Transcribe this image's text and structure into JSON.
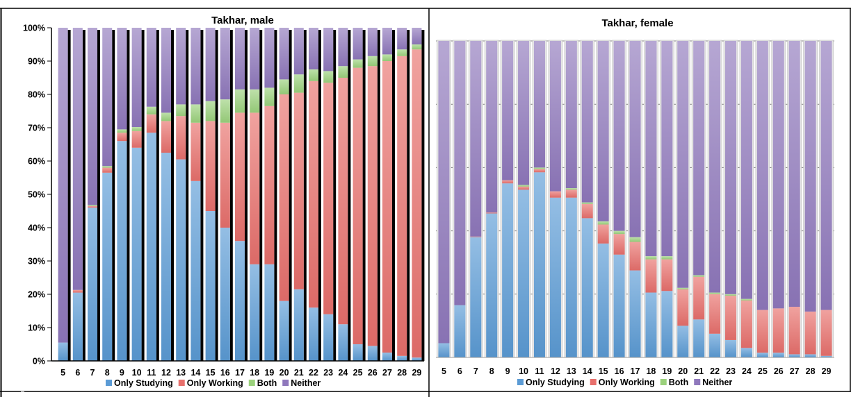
{
  "colors": {
    "only_studying": "#5b9bd5",
    "only_working": "#e8706c",
    "both": "#9bd17c",
    "neither": "#8f78bc"
  },
  "chart_data": [
    {
      "type": "bar",
      "stacked": true,
      "title": "Takhar, male",
      "categories": [
        "5",
        "6",
        "7",
        "8",
        "9",
        "10",
        "11",
        "12",
        "13",
        "14",
        "15",
        "16",
        "17",
        "18",
        "19",
        "20",
        "21",
        "22",
        "23",
        "24",
        "25",
        "26",
        "27",
        "28",
        "29"
      ],
      "y_ticks": [
        "0%",
        "10%",
        "20%",
        "30%",
        "40%",
        "50%",
        "60%",
        "70%",
        "80%",
        "90%",
        "100%"
      ],
      "ylim": [
        0,
        100
      ],
      "legend_position": "bottom",
      "series": [
        {
          "name": "Only Studying",
          "values": [
            5.5,
            20.5,
            46,
            56.5,
            66,
            64,
            68.5,
            62.5,
            60.5,
            54,
            45,
            40,
            36,
            29,
            29,
            18,
            21.5,
            16,
            14,
            11,
            5,
            4.5,
            2.5,
            1.5,
            1
          ]
        },
        {
          "name": "Only Working",
          "values": [
            0,
            0.8,
            0.5,
            1.5,
            2.5,
            5,
            5.5,
            9.5,
            13,
            17.5,
            27,
            31.5,
            38.5,
            45.5,
            47.5,
            62,
            59,
            68,
            69.5,
            74,
            83,
            84,
            87.5,
            90,
            92.5
          ]
        },
        {
          "name": "Both",
          "values": [
            0,
            0,
            0.3,
            0.5,
            1,
            1.2,
            2.3,
            2.5,
            3.5,
            5.5,
            6,
            7,
            7,
            7,
            5.5,
            4.5,
            5.5,
            3.5,
            3.5,
            3.5,
            2.5,
            3,
            2,
            2,
            1.5
          ]
        },
        {
          "name": "Neither",
          "values": [
            94.5,
            78.7,
            53.2,
            41.5,
            30.5,
            29.8,
            23.7,
            25.5,
            23,
            23,
            22,
            21.5,
            18.5,
            18.5,
            18,
            15.5,
            14,
            12.5,
            13,
            11.5,
            9.5,
            8.5,
            8,
            6.5,
            5
          ]
        }
      ]
    },
    {
      "type": "bar",
      "stacked": true,
      "title": "Takhar, female",
      "categories": [
        "5",
        "6",
        "7",
        "8",
        "9",
        "10",
        "11",
        "12",
        "13",
        "14",
        "15",
        "16",
        "17",
        "18",
        "19",
        "20",
        "21",
        "22",
        "23",
        "24",
        "25",
        "26",
        "27",
        "28",
        "29"
      ],
      "ylim": [
        0,
        100
      ],
      "legend_position": "bottom",
      "series": [
        {
          "name": "Only Studying",
          "values": [
            4.5,
            16.5,
            38,
            45.5,
            55,
            53,
            58.5,
            50.5,
            50.5,
            44,
            36,
            32.5,
            27.5,
            20.5,
            21,
            10,
            12,
            7.5,
            5.5,
            3,
            1.5,
            1.5,
            1,
            1,
            0.5
          ]
        },
        {
          "name": "Only Working",
          "values": [
            0,
            0,
            0.2,
            0.3,
            1,
            1,
            1,
            2,
            2.5,
            4.5,
            6,
            6.5,
            9,
            10.5,
            10,
            11.5,
            13.5,
            12.5,
            14,
            15,
            13.5,
            14,
            15,
            13.5,
            14.5
          ]
        },
        {
          "name": "Both",
          "values": [
            0,
            0,
            0,
            0,
            0,
            0.5,
            0.5,
            0,
            0.5,
            0.5,
            1,
            1,
            1.5,
            1,
            1,
            0.5,
            0.5,
            0.5,
            0.5,
            0.5,
            0,
            0,
            0,
            0,
            0
          ]
        },
        {
          "name": "Neither",
          "values": [
            95.5,
            83.5,
            61.8,
            54.2,
            44,
            45.5,
            40,
            47.5,
            46.5,
            51,
            57,
            60,
            62,
            68,
            68,
            78,
            74,
            79.5,
            80,
            81.5,
            85,
            84.5,
            84,
            85.5,
            85
          ]
        }
      ]
    }
  ]
}
